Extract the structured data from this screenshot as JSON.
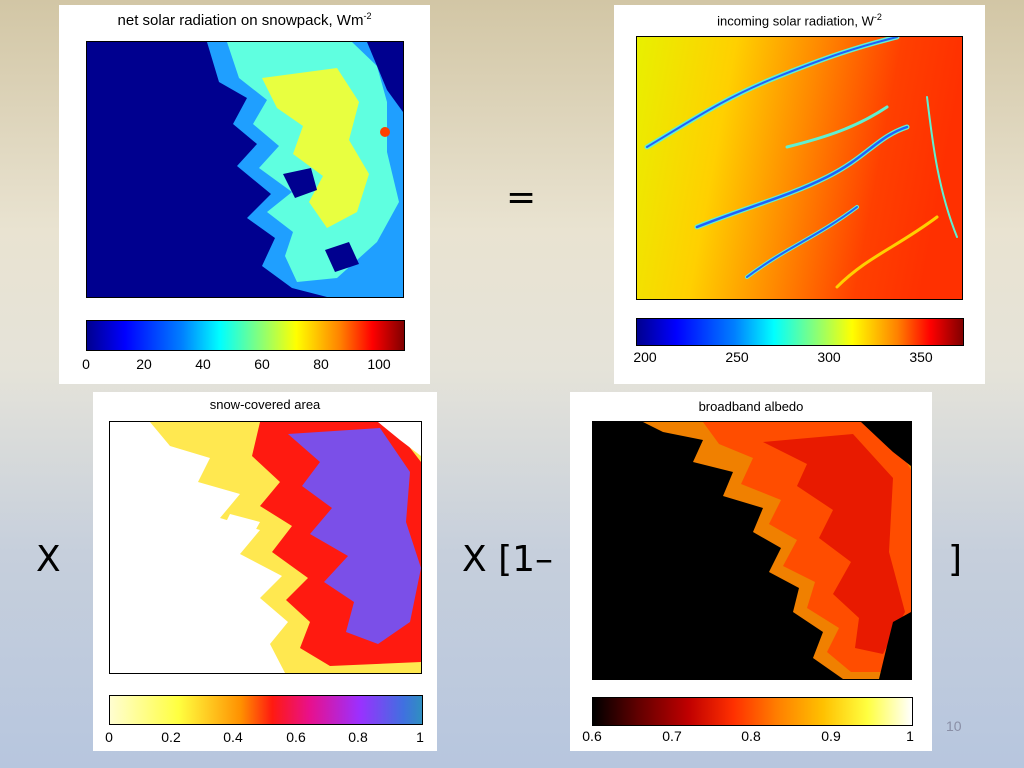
{
  "slide": {
    "equals": "=",
    "times_1": "X",
    "times_2": "X [1–",
    "bracket_close": "]",
    "page_number": "10"
  },
  "panels": {
    "net": {
      "title_text": "net solar radiation on snowpack, Wm",
      "title_sup": "-2",
      "colormap": "jet",
      "ticks": [
        "0",
        "20",
        "40",
        "60",
        "80",
        "100"
      ],
      "tick_values": [
        0,
        20,
        40,
        60,
        80,
        100
      ],
      "range": [
        0,
        108
      ],
      "map_colors": {
        "background": "#00008f",
        "patch_low": "#1f9fff",
        "patch_mid": "#5fffe0",
        "patch_high": "#e8ff40",
        "hot": "#ff4000"
      }
    },
    "incoming": {
      "title_text": "incoming solar radiation, W",
      "title_sup": "-2",
      "colormap": "jet",
      "ticks": [
        "200",
        "250",
        "300",
        "350"
      ],
      "tick_values": [
        200,
        250,
        300,
        350
      ],
      "range": [
        195,
        372
      ],
      "map_colors": {
        "low": "#e8f000",
        "mid": "#ffae00",
        "high": "#ff3000",
        "channel": "#2060ff",
        "channel_edge": "#60f0d0"
      }
    },
    "sca": {
      "title_text": "snow-covered area",
      "colormap": "yellow-red-purple-blue",
      "ticks": [
        "0",
        "0.2",
        "0.4",
        "0.6",
        "0.8",
        "1"
      ],
      "tick_values": [
        0,
        0.2,
        0.4,
        0.6,
        0.8,
        1
      ],
      "range": [
        0,
        1
      ],
      "map_colors": {
        "empty": "#ffffff",
        "low": "#ffe850",
        "mid": "#ff1a10",
        "high": "#7b4fe8"
      }
    },
    "albedo": {
      "title_text": "broadband albedo",
      "colormap": "hot",
      "ticks": [
        "0.6",
        "0.7",
        "0.8",
        "0.9",
        "1"
      ],
      "tick_values": [
        0.6,
        0.7,
        0.8,
        0.9,
        1
      ],
      "range": [
        0.6,
        1
      ],
      "map_colors": {
        "empty": "#000000",
        "low": "#f08000",
        "mid": "#ff4d00",
        "high": "#e81a00"
      }
    }
  }
}
